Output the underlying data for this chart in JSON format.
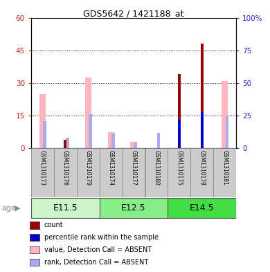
{
  "title": "GDS5642 / 1421188_at",
  "samples": [
    "GSM1310173",
    "GSM1310176",
    "GSM1310179",
    "GSM1310174",
    "GSM1310177",
    "GSM1310180",
    "GSM1310175",
    "GSM1310178",
    "GSM1310181"
  ],
  "groups": [
    {
      "label": "E11.5",
      "indices": [
        0,
        1,
        2
      ]
    },
    {
      "label": "E12.5",
      "indices": [
        3,
        4,
        5
      ]
    },
    {
      "label": "E14.5",
      "indices": [
        6,
        7,
        8
      ]
    }
  ],
  "value_absent": [
    25.0,
    null,
    32.5,
    7.5,
    3.0,
    null,
    null,
    null,
    31.0
  ],
  "rank_absent": [
    21.0,
    8.0,
    26.0,
    11.0,
    4.5,
    12.0,
    null,
    null,
    25.0
  ],
  "count": [
    null,
    4.0,
    null,
    null,
    null,
    null,
    34.0,
    48.0,
    null
  ],
  "percentile": [
    null,
    null,
    null,
    null,
    null,
    null,
    21.5,
    27.5,
    null
  ],
  "ylim_left": [
    0,
    60
  ],
  "ylim_right": [
    0,
    100
  ],
  "yticks_left": [
    0,
    15,
    30,
    45,
    60
  ],
  "yticks_right": [
    0,
    25,
    50,
    75,
    100
  ],
  "color_count": "#990000",
  "color_percentile": "#0000cc",
  "color_value_absent": "#ffb6c1",
  "color_rank_absent": "#aaaaee",
  "left_tick_color": "#cc2222",
  "right_tick_color": "#2222cc",
  "group_colors": [
    "#ccf5cc",
    "#88ee88",
    "#44dd44"
  ],
  "legend_items": [
    {
      "color": "#990000",
      "label": "count"
    },
    {
      "color": "#0000cc",
      "label": "percentile rank within the sample"
    },
    {
      "color": "#ffb6c1",
      "label": "value, Detection Call = ABSENT"
    },
    {
      "color": "#aaaaee",
      "label": "rank, Detection Call = ABSENT"
    }
  ]
}
